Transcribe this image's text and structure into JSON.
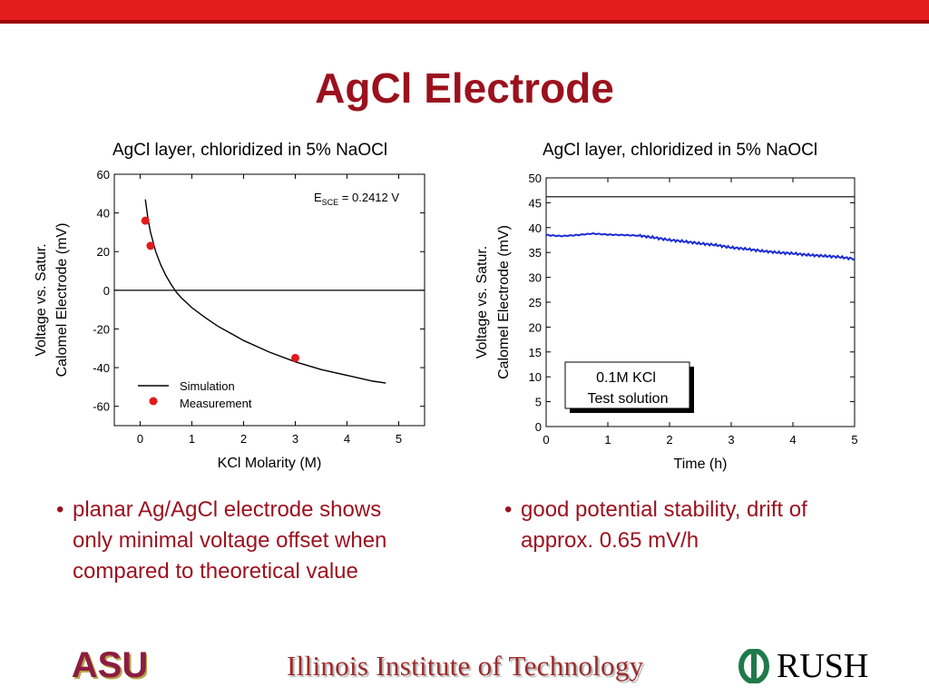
{
  "slide": {
    "title": "AgCl Electrode",
    "bullets_left": [
      "planar Ag/AgCl electrode shows",
      "only minimal voltage offset when",
      "compared to theoretical value"
    ],
    "bullets_right": [
      "good potential stability, drift of",
      "approx. 0.65 mV/h"
    ],
    "bullet_mark": "•"
  },
  "footer": {
    "iit": "Illinois Institute of Technology",
    "rush": "RUSH",
    "asu_logo_text": "ASU"
  },
  "colors": {
    "title": "#9b111e",
    "topbar": "#e31c1c",
    "measurement": "#e21a1a",
    "series": "#1c2bd6"
  },
  "chart_data": [
    {
      "type": "scatter",
      "title": "AgCl layer, chloridized in 5% NaOCl",
      "xlabel": "KCl Molarity (M)",
      "ylabel_line1": "Voltage vs. Satur.",
      "ylabel_line2": "Calomel Electrode (mV)",
      "xlim": [
        -0.5,
        5.5
      ],
      "ylim": [
        -70,
        60
      ],
      "xticks": [
        0,
        1,
        2,
        3,
        4,
        5
      ],
      "yticks": [
        -60,
        -40,
        -20,
        0,
        20,
        40,
        60
      ],
      "annotation": {
        "text_main": "E",
        "text_sub": "SCE",
        "text_rest": " = 0.2412 V"
      },
      "legend": {
        "position": "bottom-left",
        "simulation": "Simulation",
        "measurement": "Measurement"
      },
      "series": [
        {
          "name": "Simulation",
          "kind": "line",
          "x": [
            0.1,
            0.15,
            0.2,
            0.3,
            0.4,
            0.5,
            0.6,
            0.7,
            0.8,
            1.0,
            1.25,
            1.5,
            2.0,
            2.5,
            3.0,
            3.5,
            4.0,
            4.5,
            4.75
          ],
          "y": [
            47,
            37,
            30,
            20,
            13,
            7.5,
            3,
            -1,
            -4,
            -9,
            -14,
            -18.5,
            -26,
            -32,
            -37,
            -41,
            -44,
            -47,
            -48
          ]
        },
        {
          "name": "Measurement",
          "kind": "points",
          "x": [
            0.1,
            0.2,
            3.0
          ],
          "y": [
            36,
            23,
            -35
          ]
        }
      ],
      "reference_line_y": 0
    },
    {
      "type": "line",
      "title": "AgCl layer, chloridized in 5% NaOCl",
      "xlabel": "Time (h)",
      "ylabel_line1": "Voltage vs. Satur.",
      "ylabel_line2": "Calomel Electrode (mV)",
      "xlim": [
        0,
        5
      ],
      "ylim": [
        0,
        50
      ],
      "xticks": [
        0,
        1,
        2,
        3,
        4,
        5
      ],
      "yticks": [
        0,
        5,
        10,
        15,
        20,
        25,
        30,
        35,
        40,
        45,
        50
      ],
      "reference_line_y": 46.2,
      "box_text": [
        "0.1M KCl",
        "Test solution"
      ],
      "series": [
        {
          "name": "",
          "x": [
            0,
            0.25,
            0.5,
            0.75,
            1.0,
            1.25,
            1.5,
            1.75,
            2.0,
            2.25,
            2.5,
            2.75,
            3.0,
            3.25,
            3.5,
            3.75,
            4.0,
            4.25,
            4.5,
            4.75,
            5.0
          ],
          "y": [
            38.5,
            38.3,
            38.5,
            38.8,
            38.6,
            38.5,
            38.4,
            38.0,
            37.5,
            37.2,
            36.8,
            36.5,
            36.0,
            35.7,
            35.3,
            35.0,
            34.8,
            34.5,
            34.3,
            34.1,
            33.7
          ]
        }
      ]
    }
  ]
}
